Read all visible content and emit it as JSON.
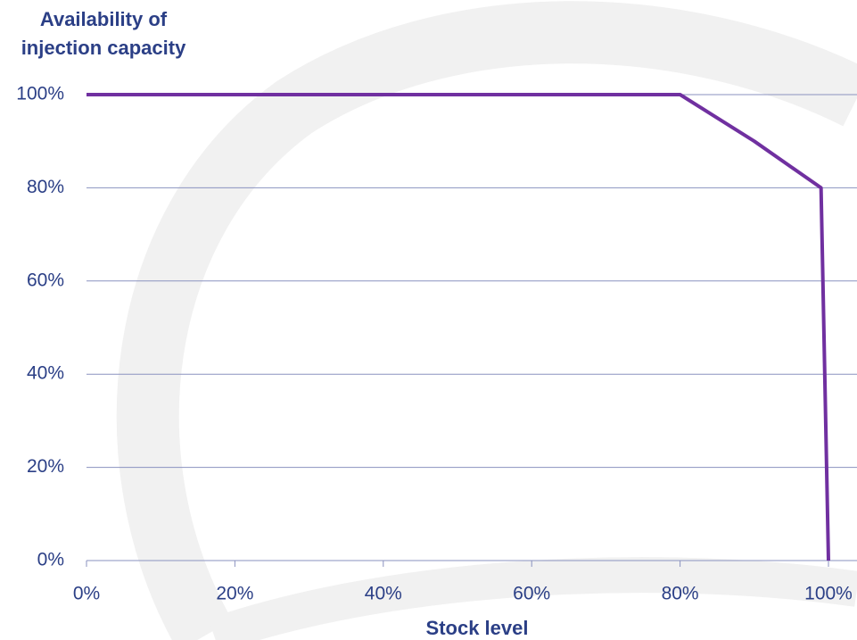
{
  "chart_data": {
    "type": "line",
    "title": "Availability of injection capacity",
    "x_label": "Stock level",
    "x": [
      0,
      80,
      90,
      99,
      100
    ],
    "values": [
      100,
      100,
      90,
      80,
      0
    ],
    "color": "#7030a0",
    "xlim": [
      0,
      100
    ],
    "ylim": [
      0,
      100
    ],
    "xticks": [
      {
        "value": 0,
        "label": "0%"
      },
      {
        "value": 20,
        "label": "20%"
      },
      {
        "value": 40,
        "label": "40%"
      },
      {
        "value": 60,
        "label": "60%"
      },
      {
        "value": 80,
        "label": "80%"
      },
      {
        "value": 100,
        "label": "100%"
      }
    ],
    "yticks": [
      {
        "value": 0,
        "label": "0%"
      },
      {
        "value": 20,
        "label": "20%"
      },
      {
        "value": 40,
        "label": "40%"
      },
      {
        "value": 60,
        "label": "60%"
      },
      {
        "value": 80,
        "label": "80%"
      },
      {
        "value": 100,
        "label": "100%"
      }
    ],
    "grid": true
  }
}
